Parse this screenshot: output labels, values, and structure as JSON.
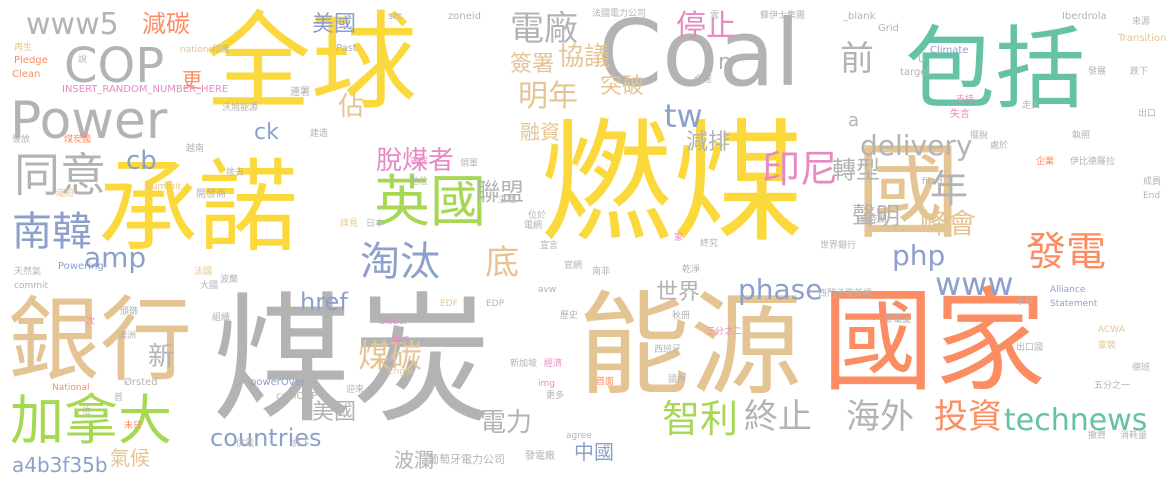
{
  "palette": {
    "yellow": "#fbd93d",
    "gray": "#b3b3b3",
    "teal": "#66c2a5",
    "orange": "#fc8d62",
    "tan": "#e5c494",
    "green": "#a6d854",
    "blue": "#8da0cb",
    "pink": "#e78ac3"
  },
  "words": [
    {
      "text": "燃煤",
      "color": "#fbd93d"
    },
    {
      "text": "煤炭",
      "color": "#b3b3b3"
    },
    {
      "text": "全球",
      "color": "#fbd93d"
    },
    {
      "text": "Coal",
      "color": "#b3b3b3"
    },
    {
      "text": "能源",
      "color": "#e5c494"
    },
    {
      "text": "國家",
      "color": "#fc8d62"
    },
    {
      "text": "承諾",
      "color": "#fbd93d"
    },
    {
      "text": "包括",
      "color": "#66c2a5"
    },
    {
      "text": "國",
      "color": "#e5c494"
    },
    {
      "text": "銀行",
      "color": "#e5c494"
    },
    {
      "text": "加拿大",
      "color": "#a6d854"
    },
    {
      "text": "Power",
      "color": "#b3b3b3"
    },
    {
      "text": "英國",
      "color": "#a6d854"
    },
    {
      "text": "南韓",
      "color": "#8da0cb"
    },
    {
      "text": "同意",
      "color": "#b3b3b3"
    },
    {
      "text": "COP",
      "color": "#b3b3b3"
    },
    {
      "text": "www5",
      "color": "#b3b3b3"
    },
    {
      "text": "淘汰",
      "color": "#8da0cb"
    },
    {
      "text": "電廠",
      "color": "#b3b3b3"
    },
    {
      "text": "減碳",
      "color": "#fc8d62"
    },
    {
      "text": "美國",
      "color": "#8da0cb"
    },
    {
      "text": "明年",
      "color": "#e5c494"
    },
    {
      "text": "停止",
      "color": "#e78ac3"
    },
    {
      "text": "協議",
      "color": "#e5c494"
    },
    {
      "text": "簽署",
      "color": "#e5c494"
    },
    {
      "text": "突破",
      "color": "#e5c494"
    },
    {
      "text": "tw",
      "color": "#8da0cb"
    },
    {
      "text": "前",
      "color": "#b3b3b3"
    },
    {
      "text": "n",
      "color": "#b3b3b3"
    },
    {
      "text": "佔",
      "color": "#e5c494"
    },
    {
      "text": "更",
      "color": "#fc8d62"
    },
    {
      "text": "融資",
      "color": "#e5c494"
    },
    {
      "text": "減排",
      "color": "#b3b3b3"
    },
    {
      "text": "脫煤者",
      "color": "#e78ac3"
    },
    {
      "text": "聯盟",
      "color": "#b3b3b3"
    },
    {
      "text": "印尼",
      "color": "#e78ac3"
    },
    {
      "text": "轉型",
      "color": "#b3b3b3"
    },
    {
      "text": "年",
      "color": "#b3b3b3"
    },
    {
      "text": "delivery",
      "color": "#b3b3b3"
    },
    {
      "text": "聲明",
      "color": "#b3b3b3"
    },
    {
      "text": "底",
      "color": "#e5c494"
    },
    {
      "text": "發電",
      "color": "#fc8d62"
    },
    {
      "text": "峰會",
      "color": "#e5c494"
    },
    {
      "text": "php",
      "color": "#8da0cb"
    },
    {
      "text": "www",
      "color": "#8da0cb"
    },
    {
      "text": "amp",
      "color": "#8da0cb"
    },
    {
      "text": "cb",
      "color": "#8da0cb"
    },
    {
      "text": "ck",
      "color": "#8da0cb"
    },
    {
      "text": "a",
      "color": "#b3b3b3"
    },
    {
      "text": "世界",
      "color": "#b3b3b3"
    },
    {
      "text": "phase",
      "color": "#8da0cb"
    },
    {
      "text": "href",
      "color": "#8da0cb"
    },
    {
      "text": "煤碳",
      "color": "#e5c494"
    },
    {
      "text": "新",
      "color": "#b3b3b3"
    },
    {
      "text": "智利",
      "color": "#a6d854"
    },
    {
      "text": "終止",
      "color": "#b3b3b3"
    },
    {
      "text": "海外",
      "color": "#b3b3b3"
    },
    {
      "text": "投資",
      "color": "#fc8d62"
    },
    {
      "text": "technews",
      "color": "#66c2a5"
    },
    {
      "text": "countries",
      "color": "#8da0cb"
    },
    {
      "text": "美國",
      "color": "#b3b3b3"
    },
    {
      "text": "電力",
      "color": "#b3b3b3"
    },
    {
      "text": "中國",
      "color": "#8da0cb"
    },
    {
      "text": "波瀾",
      "color": "#b3b3b3"
    },
    {
      "text": "a4b3f35b",
      "color": "#8da0cb"
    },
    {
      "text": "氣候",
      "color": "#e5c494"
    },
    {
      "text": "葡萄牙電力公司",
      "color": "#b3b3b3"
    },
    {
      "text": "發電廠",
      "color": "#b3b3b3"
    },
    {
      "text": "INSERT_RANDOM_NUMBER_HERE",
      "color": "#e78ac3"
    },
    {
      "text": "nations",
      "color": "#e5c494"
    },
    {
      "text": "Past",
      "color": "#b3b3b3"
    },
    {
      "text": "src",
      "color": "#b3b3b3"
    },
    {
      "text": "zoneid",
      "color": "#b3b3b3"
    },
    {
      "text": "法國電力公司",
      "color": "#b3b3b3"
    },
    {
      "text": "蘇伊士集團",
      "color": "#b3b3b3"
    },
    {
      "text": "_blank",
      "color": "#b3b3b3"
    },
    {
      "text": "Grid",
      "color": "#b3b3b3"
    },
    {
      "text": "Iberdrola",
      "color": "#b3b3b3"
    },
    {
      "text": "來源",
      "color": "#b3b3b3"
    },
    {
      "text": "Transition",
      "color": "#e5c494"
    },
    {
      "text": "Climate",
      "color": "#8da0cb"
    },
    {
      "text": "target",
      "color": "#b3b3b3"
    },
    {
      "text": "發展",
      "color": "#b3b3b3"
    },
    {
      "text": "跌下",
      "color": "#b3b3b3"
    },
    {
      "text": "Pledge",
      "color": "#fc8d62"
    },
    {
      "text": "Clean",
      "color": "#fc8d62"
    },
    {
      "text": "再生",
      "color": "#e5c494"
    },
    {
      "text": "印度",
      "color": "#b3b3b3"
    },
    {
      "text": "說",
      "color": "#b3b3b3"
    },
    {
      "text": "連署",
      "color": "#b3b3b3"
    },
    {
      "text": "沃旭能源",
      "color": "#b3b3b3"
    },
    {
      "text": "建造",
      "color": "#b3b3b3"
    },
    {
      "text": "發放",
      "color": "#b3b3b3"
    },
    {
      "text": "煤炭國",
      "color": "#fc8d62"
    },
    {
      "text": "越南",
      "color": "#b3b3b3"
    },
    {
      "text": "捨去",
      "color": "#b3b3b3"
    },
    {
      "text": "Summit",
      "color": "#e5c494"
    },
    {
      "text": "開發商",
      "color": "#b3b3b3"
    },
    {
      "text": "支持",
      "color": "#e78ac3"
    },
    {
      "text": "失言",
      "color": "#e78ac3"
    },
    {
      "text": "走入",
      "color": "#b3b3b3"
    },
    {
      "text": "執照",
      "color": "#b3b3b3"
    },
    {
      "text": "出口",
      "color": "#b3b3b3"
    },
    {
      "text": "伊比德羅拉",
      "color": "#b3b3b3"
    },
    {
      "text": "End",
      "color": "#b3b3b3"
    },
    {
      "text": "企業",
      "color": "#fc8d62"
    },
    {
      "text": "fired",
      "color": "#b3b3b3"
    },
    {
      "text": "處於",
      "color": "#b3b3b3"
    },
    {
      "text": "天然氣",
      "color": "#b3b3b3"
    },
    {
      "text": "Powering",
      "color": "#8da0cb"
    },
    {
      "text": "commit",
      "color": "#b3b3b3"
    },
    {
      "text": "法國",
      "color": "#e5c494"
    },
    {
      "text": "波蘭",
      "color": "#b3b3b3"
    },
    {
      "text": "大國",
      "color": "#b3b3b3"
    },
    {
      "text": "澳洲",
      "color": "#b3b3b3"
    },
    {
      "text": "頒篩",
      "color": "#b3b3b3"
    },
    {
      "text": "組織",
      "color": "#b3b3b3"
    },
    {
      "text": "次",
      "color": "#e78ac3"
    },
    {
      "text": "National",
      "color": "#fc8d62"
    },
    {
      "text": "Ørsted",
      "color": "#b3b3b3"
    },
    {
      "text": "Global",
      "color": "#e78ac3"
    },
    {
      "text": "EDF",
      "color": "#e5c494"
    },
    {
      "text": "EDP",
      "color": "#b3b3b3"
    },
    {
      "text": "avw",
      "color": "#b3b3b3"
    },
    {
      "text": "Engie",
      "color": "#e5c494"
    },
    {
      "text": "powerOver",
      "color": "#8da0cb"
    },
    {
      "text": "coalCOP",
      "color": "#b3b3b3"
    },
    {
      "text": "img",
      "color": "#e78ac3"
    },
    {
      "text": "agree",
      "color": "#b3b3b3"
    },
    {
      "text": "更多",
      "color": "#b3b3b3"
    },
    {
      "text": "首面",
      "color": "#fc8d62"
    },
    {
      "text": "新加坡",
      "color": "#b3b3b3"
    },
    {
      "text": "經濟",
      "color": "#e78ac3"
    },
    {
      "text": "迎來",
      "color": "#b3b3b3"
    },
    {
      "text": "許下",
      "color": "#b3b3b3"
    },
    {
      "text": "供電",
      "color": "#b3b3b3"
    },
    {
      "text": "西班牙",
      "color": "#b3b3b3"
    },
    {
      "text": "三分之二",
      "color": "#e78ac3"
    },
    {
      "text": "國內",
      "color": "#b3b3b3"
    },
    {
      "text": "歷史",
      "color": "#b3b3b3"
    },
    {
      "text": "南非",
      "color": "#b3b3b3"
    },
    {
      "text": "乾淨",
      "color": "#b3b3b3"
    },
    {
      "text": "西門子歌美颯",
      "color": "#b3b3b3"
    },
    {
      "text": "Alliance",
      "color": "#8da0cb"
    },
    {
      "text": "Statement",
      "color": "#8da0cb"
    },
    {
      "text": "ACWA",
      "color": "#e5c494"
    },
    {
      "text": "系統",
      "color": "#b3b3b3"
    },
    {
      "text": "發電量",
      "color": "#b3b3b3"
    },
    {
      "text": "家裝",
      "color": "#e5c494"
    },
    {
      "text": "德班",
      "color": "#b3b3b3"
    },
    {
      "text": "出口國",
      "color": "#b3b3b3"
    },
    {
      "text": "五分之一",
      "color": "#b3b3b3"
    },
    {
      "text": "消耗量",
      "color": "#b3b3b3"
    },
    {
      "text": "撤資",
      "color": "#b3b3b3"
    },
    {
      "text": "世界銀行",
      "color": "#b3b3b3"
    },
    {
      "text": "烏克蘭",
      "color": "#b3b3b3"
    },
    {
      "text": "宣言",
      "color": "#b3b3b3"
    },
    {
      "text": "日本",
      "color": "#b3b3b3"
    },
    {
      "text": "詳見",
      "color": "#e5c494"
    },
    {
      "text": "位於",
      "color": "#b3b3b3"
    },
    {
      "text": "主題",
      "color": "#b3b3b3"
    },
    {
      "text": "電網",
      "color": "#b3b3b3"
    },
    {
      "text": "表態",
      "color": "#e78ac3"
    },
    {
      "text": "地位",
      "color": "#b3b3b3"
    },
    {
      "text": "領軍",
      "color": "#b3b3b3"
    },
    {
      "text": "首",
      "color": "#b3b3b3"
    },
    {
      "text": "未日",
      "color": "#fc8d62"
    },
    {
      "text": "縮短",
      "color": "#e5c494"
    },
    {
      "text": "推手",
      "color": "#e78ac3"
    },
    {
      "text": "成員",
      "color": "#b3b3b3"
    },
    {
      "text": "擺脫",
      "color": "#b3b3b3"
    },
    {
      "text": "官網",
      "color": "#b3b3b3"
    },
    {
      "text": "終究",
      "color": "#b3b3b3"
    },
    {
      "text": "秋冊",
      "color": "#b3b3b3"
    },
    {
      "text": "位",
      "color": "#b3b3b3"
    },
    {
      "text": "家",
      "color": "#e78ac3"
    },
    {
      "text": "U",
      "color": "#b3b3b3"
    },
    {
      "text": "全速",
      "color": "#b3b3b3"
    },
    {
      "text": "雲",
      "color": "#b3b3b3"
    }
  ]
}
